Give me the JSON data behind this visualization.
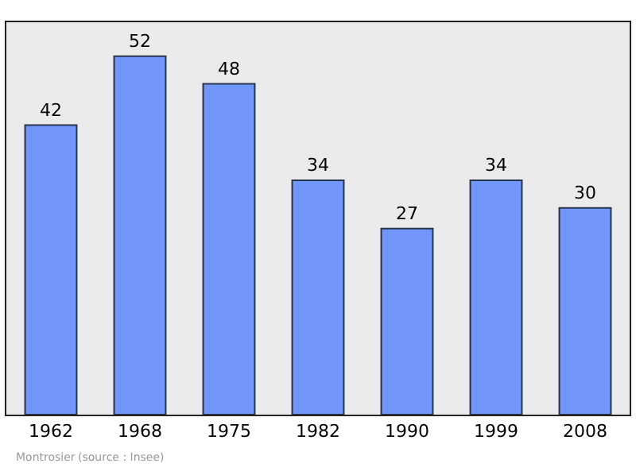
{
  "chart_data": {
    "type": "bar",
    "categories": [
      "1962",
      "1968",
      "1975",
      "1982",
      "1990",
      "1999",
      "2008"
    ],
    "values": [
      42,
      52,
      48,
      34,
      27,
      34,
      30
    ],
    "color": "#6f96f8",
    "data_labels": true,
    "grid": false,
    "annotations": [
      "Montrosier",
      "(source : Insee)"
    ]
  }
}
